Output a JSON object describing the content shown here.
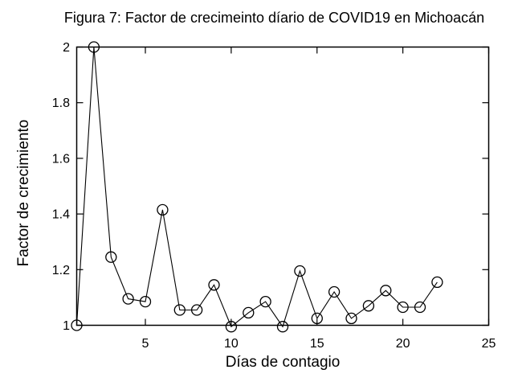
{
  "figure": {
    "background_color": "#ffffff",
    "axis_color": "#000000"
  },
  "chart_data": {
    "type": "line",
    "title": "Figura 7: Factor de crecimeinto díario de COVID19 en Michoacán",
    "xlabel": "Días de contagio",
    "ylabel": "Factor de crecimiento",
    "xlim": [
      1,
      25
    ],
    "ylim": [
      1,
      2
    ],
    "xticks": [
      5,
      10,
      15,
      20,
      25
    ],
    "xtick_labels": [
      "5",
      "10",
      "15",
      "20",
      "25"
    ],
    "yticks": [
      1,
      1.2,
      1.4,
      1.6,
      1.8,
      2
    ],
    "ytick_labels": [
      "1",
      "1.2",
      "1.4",
      "1.6",
      "1.8",
      "2"
    ],
    "grid": false,
    "legend_position": "none",
    "marker": "open-circle",
    "line_color": "#000000",
    "marker_color": "#000000",
    "series": [
      {
        "name": "factor-de-crecimiento",
        "x": [
          1,
          2,
          3,
          4,
          5,
          6,
          7,
          8,
          9,
          10,
          11,
          12,
          13,
          14,
          15,
          16,
          17,
          18,
          19,
          20,
          21,
          22
        ],
        "y": [
          1.0,
          2.0,
          1.245,
          1.095,
          1.085,
          1.415,
          1.055,
          1.055,
          1.145,
          0.995,
          1.045,
          1.085,
          0.995,
          1.195,
          1.025,
          1.12,
          1.025,
          1.07,
          1.125,
          1.065,
          1.065,
          1.155
        ]
      }
    ]
  }
}
